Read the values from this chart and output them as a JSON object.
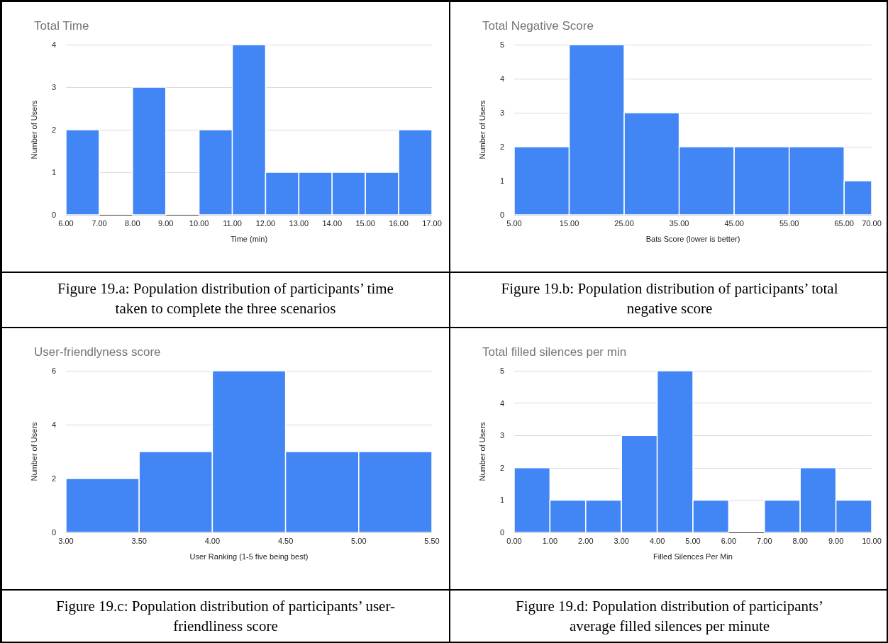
{
  "chart_data": [
    {
      "type": "histogram",
      "title": "Total Time",
      "xlabel": "Time (min)",
      "ylabel": "Number of Users",
      "color": "#4285f4",
      "grid": "y",
      "bins": [
        6,
        7,
        8,
        9,
        10,
        11,
        12,
        13,
        14,
        15,
        16,
        17
      ],
      "values": [
        2,
        0,
        3,
        0,
        2,
        4,
        1,
        1,
        1,
        1,
        2
      ],
      "xlim": [
        6,
        17
      ],
      "xticks": [
        {
          "value": 6,
          "label": "6.00"
        },
        {
          "value": 7,
          "label": "7.00"
        },
        {
          "value": 8,
          "label": "8.00"
        },
        {
          "value": 9,
          "label": "9.00"
        },
        {
          "value": 10,
          "label": "10.00"
        },
        {
          "value": 11,
          "label": "11.00"
        },
        {
          "value": 12,
          "label": "12.00"
        },
        {
          "value": 13,
          "label": "13.00"
        },
        {
          "value": 14,
          "label": "14.00"
        },
        {
          "value": 15,
          "label": "15.00"
        },
        {
          "value": 16,
          "label": "16.00"
        },
        {
          "value": 17,
          "label": "17.00"
        }
      ],
      "ylim": [
        0,
        4
      ],
      "yticks": [
        0,
        1,
        2,
        3,
        4
      ],
      "annotations": [
        "Figure 19.a: Population distribution of participants’ time taken to complete the three scenarios"
      ]
    },
    {
      "type": "histogram",
      "title": "Total Negative Score",
      "xlabel": "Bats Score (lower is better)",
      "ylabel": "Number of Users",
      "color": "#4285f4",
      "grid": "y",
      "bins": [
        5,
        15,
        25,
        35,
        45,
        55,
        65,
        70
      ],
      "values": [
        2,
        5,
        3,
        2,
        2,
        2,
        1
      ],
      "xlim": [
        5,
        70
      ],
      "xticks": [
        {
          "value": 5,
          "label": "5.00"
        },
        {
          "value": 15,
          "label": "15.00"
        },
        {
          "value": 25,
          "label": "25.00"
        },
        {
          "value": 35,
          "label": "35.00"
        },
        {
          "value": 45,
          "label": "45.00"
        },
        {
          "value": 55,
          "label": "55.00"
        },
        {
          "value": 65,
          "label": "65.00"
        },
        {
          "value": 70,
          "label": "70.00"
        }
      ],
      "ylim": [
        0,
        5
      ],
      "yticks": [
        0,
        1,
        2,
        3,
        4,
        5
      ],
      "annotations": [
        "Figure 19.b: Population distribution of participants’ total negative score"
      ]
    },
    {
      "type": "histogram",
      "title": "User-friendlyness score",
      "xlabel": "User Ranking (1-5 five being best)",
      "ylabel": "Number of Users",
      "color": "#4285f4",
      "grid": "y",
      "bins": [
        3,
        3.5,
        4,
        4.5,
        5,
        5.5
      ],
      "values": [
        2,
        3,
        6,
        3,
        3
      ],
      "xlim": [
        3,
        5.5
      ],
      "xticks": [
        {
          "value": 3,
          "label": "3.00"
        },
        {
          "value": 3.5,
          "label": "3.50"
        },
        {
          "value": 4,
          "label": "4.00"
        },
        {
          "value": 4.5,
          "label": "4.50"
        },
        {
          "value": 5,
          "label": "5.00"
        },
        {
          "value": 5.5,
          "label": "5.50"
        }
      ],
      "ylim": [
        0,
        6
      ],
      "yticks": [
        0,
        2,
        4,
        6
      ],
      "annotations": [
        "Figure 19.c: Population distribution of participants’ user-friendliness score"
      ]
    },
    {
      "type": "histogram",
      "title": "Total filled silences per min",
      "xlabel": "Filled Silences Per Min",
      "ylabel": "Number of Users",
      "color": "#4285f4",
      "grid": "y",
      "bins": [
        0,
        1,
        2,
        3,
        4,
        5,
        6,
        7,
        8,
        9,
        10
      ],
      "values": [
        2,
        1,
        1,
        3,
        5,
        1,
        0,
        1,
        2,
        1
      ],
      "xlim": [
        0,
        10
      ],
      "xticks": [
        {
          "value": 0,
          "label": "0.00"
        },
        {
          "value": 1,
          "label": "1.00"
        },
        {
          "value": 2,
          "label": "2.00"
        },
        {
          "value": 3,
          "label": "3.00"
        },
        {
          "value": 4,
          "label": "4.00"
        },
        {
          "value": 5,
          "label": "5.00"
        },
        {
          "value": 6,
          "label": "6.00"
        },
        {
          "value": 7,
          "label": "7.00"
        },
        {
          "value": 8,
          "label": "8.00"
        },
        {
          "value": 9,
          "label": "9.00"
        },
        {
          "value": 10,
          "label": "10.00"
        }
      ],
      "ylim": [
        0,
        5
      ],
      "yticks": [
        0,
        1,
        2,
        3,
        4,
        5
      ],
      "annotations": [
        "Figure 19.d: Population distribution of participants’ average filled silences per minute"
      ]
    }
  ]
}
